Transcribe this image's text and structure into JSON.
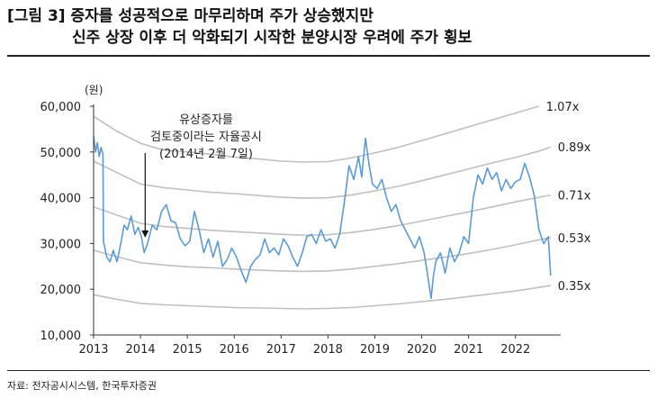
{
  "title": {
    "line1": "[그림 3] 증자를 성공적으로 마무리하며 주가 상승했지만",
    "line2": "신주 상장 이후 더 악화되기 시작한 분양시장 우려에 주가 횡보"
  },
  "source": "자료: 전자공시시스템, 한국투자증권",
  "chart_data": {
    "type": "line",
    "ylabel": "(원)",
    "ylim": [
      10000,
      60000
    ],
    "yticks": [
      "10,000",
      "20,000",
      "30,000",
      "40,000",
      "50,000",
      "60,000"
    ],
    "ytick_values": [
      10000,
      20000,
      30000,
      40000,
      50000,
      60000
    ],
    "xticks": [
      "2013",
      "2014",
      "2015",
      "2016",
      "2017",
      "2018",
      "2019",
      "2020",
      "2021",
      "2022"
    ],
    "xtick_values": [
      2013,
      2014,
      2015,
      2016,
      2017,
      2018,
      2019,
      2020,
      2021,
      2022
    ],
    "xlim": [
      2013,
      2022.85
    ],
    "annotation": {
      "lines": [
        "유상증자를",
        "검토중이라는 자율공시",
        "(2014년 2월 7일)"
      ],
      "x": 2014.1,
      "y": 30500
    },
    "colors": {
      "price": "#5b9bd5",
      "band": "#c0c0c0"
    },
    "series": [
      {
        "name": "",
        "role": "price",
        "x": [
          2013.0,
          2013.04,
          2013.08,
          2013.12,
          2013.16,
          2013.2,
          2013.21,
          2013.28,
          2013.35,
          2013.42,
          2013.5,
          2013.58,
          2013.65,
          2013.72,
          2013.8,
          2013.88,
          2013.95,
          2014.02,
          2014.08,
          2014.15,
          2014.25,
          2014.35,
          2014.45,
          2014.55,
          2014.65,
          2014.75,
          2014.85,
          2014.95,
          2015.05,
          2015.15,
          2015.25,
          2015.35,
          2015.45,
          2015.55,
          2015.65,
          2015.75,
          2015.85,
          2015.95,
          2016.05,
          2016.15,
          2016.25,
          2016.35,
          2016.45,
          2016.55,
          2016.65,
          2016.75,
          2016.85,
          2016.95,
          2017.05,
          2017.15,
          2017.25,
          2017.35,
          2017.45,
          2017.55,
          2017.65,
          2017.75,
          2017.85,
          2017.95,
          2018.05,
          2018.15,
          2018.25,
          2018.35,
          2018.45,
          2018.55,
          2018.65,
          2018.72,
          2018.8,
          2018.88,
          2018.95,
          2019.05,
          2019.15,
          2019.25,
          2019.35,
          2019.45,
          2019.55,
          2019.65,
          2019.75,
          2019.85,
          2019.95,
          2020.05,
          2020.12,
          2020.2,
          2020.25,
          2020.3,
          2020.4,
          2020.5,
          2020.6,
          2020.7,
          2020.8,
          2020.9,
          2021.0,
          2021.1,
          2021.2,
          2021.3,
          2021.4,
          2021.5,
          2021.6,
          2021.7,
          2021.8,
          2021.9,
          2022.0,
          2022.1,
          2022.2,
          2022.3,
          2022.4,
          2022.5,
          2022.6,
          2022.7,
          2022.75
        ],
        "values": [
          53500,
          50000,
          52000,
          49000,
          51000,
          49500,
          30500,
          27000,
          26000,
          28500,
          26000,
          30000,
          34000,
          33000,
          36000,
          32000,
          33500,
          31500,
          28000,
          30000,
          34000,
          33000,
          37000,
          38500,
          35000,
          34500,
          31000,
          29500,
          30500,
          37000,
          33000,
          28000,
          31000,
          27000,
          30500,
          25000,
          26500,
          29000,
          27000,
          24000,
          21500,
          25000,
          26500,
          27500,
          31000,
          28000,
          29000,
          27500,
          31000,
          29500,
          27000,
          25000,
          28000,
          31500,
          32000,
          30000,
          33000,
          30500,
          31000,
          29000,
          32000,
          39000,
          47000,
          44000,
          49000,
          44500,
          53000,
          47000,
          43000,
          42000,
          44000,
          40000,
          37000,
          38500,
          35000,
          33000,
          31000,
          29000,
          31500,
          28000,
          23500,
          18000,
          23000,
          26000,
          28000,
          23500,
          29000,
          26000,
          28000,
          31500,
          30000,
          40000,
          45000,
          43000,
          46500,
          44000,
          45500,
          41500,
          44000,
          42000,
          43500,
          44000,
          47500,
          44500,
          40500,
          33000,
          30000,
          31500,
          23000
        ]
      },
      {
        "name": "1.07x",
        "role": "band",
        "x": [
          2013.0,
          2013.5,
          2014.0,
          2014.5,
          2015.0,
          2015.5,
          2016.0,
          2016.5,
          2017.0,
          2017.5,
          2018.0,
          2018.5,
          2019.0,
          2019.5,
          2020.0,
          2020.5,
          2021.0,
          2021.5,
          2022.0,
          2022.5
        ],
        "values": [
          57800,
          54500,
          51900,
          50400,
          50000,
          49500,
          48900,
          48500,
          48000,
          47800,
          47900,
          48700,
          49800,
          51000,
          52500,
          54000,
          55500,
          57000,
          58500,
          60000
        ]
      },
      {
        "name": "0.89x",
        "role": "band",
        "x": [
          2013.0,
          2013.5,
          2014.0,
          2014.5,
          2015.0,
          2015.5,
          2016.0,
          2016.5,
          2017.0,
          2017.5,
          2018.0,
          2018.5,
          2019.0,
          2019.5,
          2020.0,
          2020.5,
          2021.0,
          2021.5,
          2022.0,
          2022.5,
          2022.75
        ],
        "values": [
          48000,
          45500,
          43000,
          42200,
          41700,
          41200,
          40900,
          40500,
          40100,
          39900,
          40000,
          40600,
          41500,
          42500,
          43700,
          45000,
          46300,
          47600,
          48800,
          50200,
          51100
        ]
      },
      {
        "name": "0.71x",
        "role": "band",
        "x": [
          2013.0,
          2013.5,
          2014.0,
          2014.5,
          2015.0,
          2015.5,
          2016.0,
          2016.5,
          2017.0,
          2017.5,
          2018.0,
          2018.5,
          2019.0,
          2019.5,
          2020.0,
          2020.5,
          2021.0,
          2021.5,
          2022.0,
          2022.5,
          2022.75
        ],
        "values": [
          38000,
          36200,
          34400,
          33700,
          33300,
          32900,
          32600,
          32300,
          32000,
          31800,
          31900,
          32400,
          33100,
          33900,
          34900,
          35900,
          36900,
          38000,
          39100,
          40100,
          40600
        ]
      },
      {
        "name": "0.53x",
        "role": "band",
        "x": [
          2013.0,
          2013.5,
          2014.0,
          2014.5,
          2015.0,
          2015.5,
          2016.0,
          2016.5,
          2017.0,
          2017.5,
          2018.0,
          2018.5,
          2019.0,
          2019.5,
          2020.0,
          2020.5,
          2021.0,
          2021.5,
          2022.0,
          2022.5,
          2022.75
        ],
        "values": [
          28500,
          27100,
          25800,
          25300,
          24900,
          24700,
          24400,
          24200,
          24000,
          23900,
          24000,
          24400,
          25000,
          25600,
          26300,
          27000,
          27800,
          28700,
          29700,
          30800,
          31300
        ]
      },
      {
        "name": "0.35x",
        "role": "band",
        "x": [
          2013.0,
          2013.5,
          2014.0,
          2014.5,
          2015.0,
          2015.5,
          2016.0,
          2016.5,
          2017.0,
          2017.5,
          2018.0,
          2018.5,
          2019.0,
          2019.5,
          2020.0,
          2020.5,
          2021.0,
          2021.5,
          2022.0,
          2022.5,
          2022.75
        ],
        "values": [
          18800,
          17800,
          16900,
          16600,
          16400,
          16200,
          16000,
          15900,
          15800,
          15700,
          15800,
          16000,
          16400,
          16800,
          17300,
          17800,
          18400,
          19000,
          19600,
          20400,
          20800
        ]
      }
    ]
  }
}
